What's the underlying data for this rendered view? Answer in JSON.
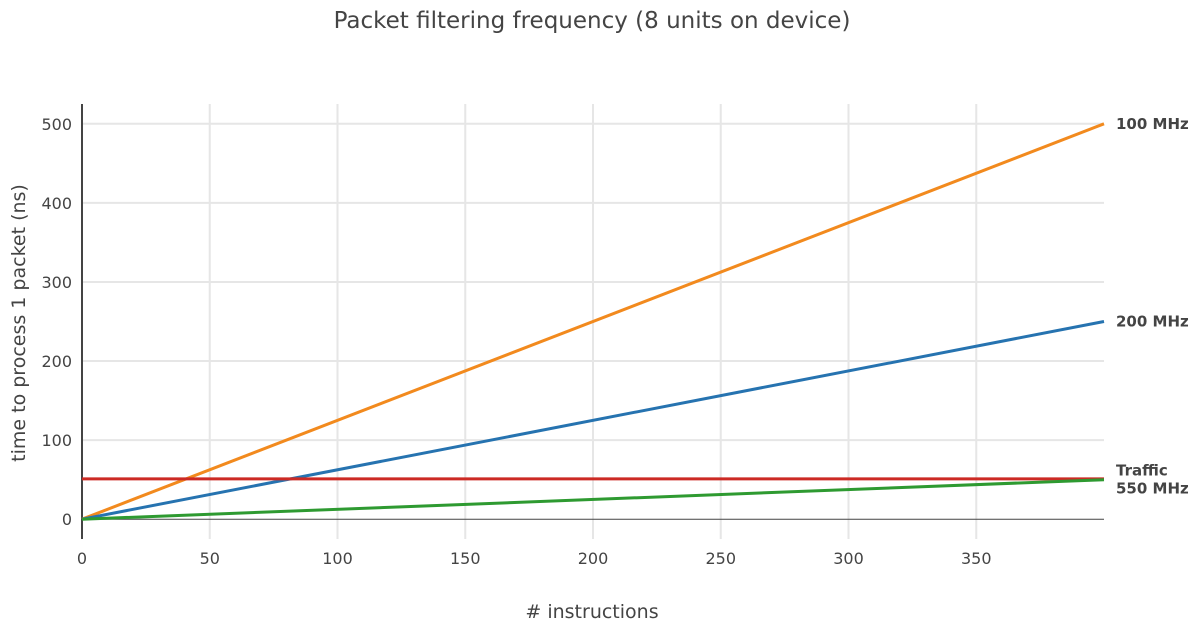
{
  "chart_data": {
    "type": "line",
    "title": "Packet filtering frequency (8 units on device)",
    "xlabel": "# instructions",
    "ylabel": "time to process 1 packet (ns)",
    "xlim": [
      0,
      400
    ],
    "ylim": [
      -25,
      525
    ],
    "x_ticks": [
      0,
      50,
      100,
      150,
      200,
      250,
      300,
      350
    ],
    "y_ticks": [
      0,
      100,
      200,
      300,
      400,
      500
    ],
    "grid": true,
    "legend": "none",
    "series": [
      {
        "name": "100 MHz",
        "color": "#f28a1e",
        "x": [
          0,
          400
        ],
        "y": [
          0,
          500
        ]
      },
      {
        "name": "200 MHz",
        "color": "#2673b0",
        "x": [
          0,
          400
        ],
        "y": [
          0,
          250
        ]
      },
      {
        "name": "Traffic",
        "color": "#cc2a24",
        "x": [
          0,
          400
        ],
        "y": [
          51,
          51
        ]
      },
      {
        "name": "550 MHz",
        "color": "#2e9a31",
        "x": [
          0,
          400
        ],
        "y": [
          0,
          50
        ]
      }
    ]
  }
}
